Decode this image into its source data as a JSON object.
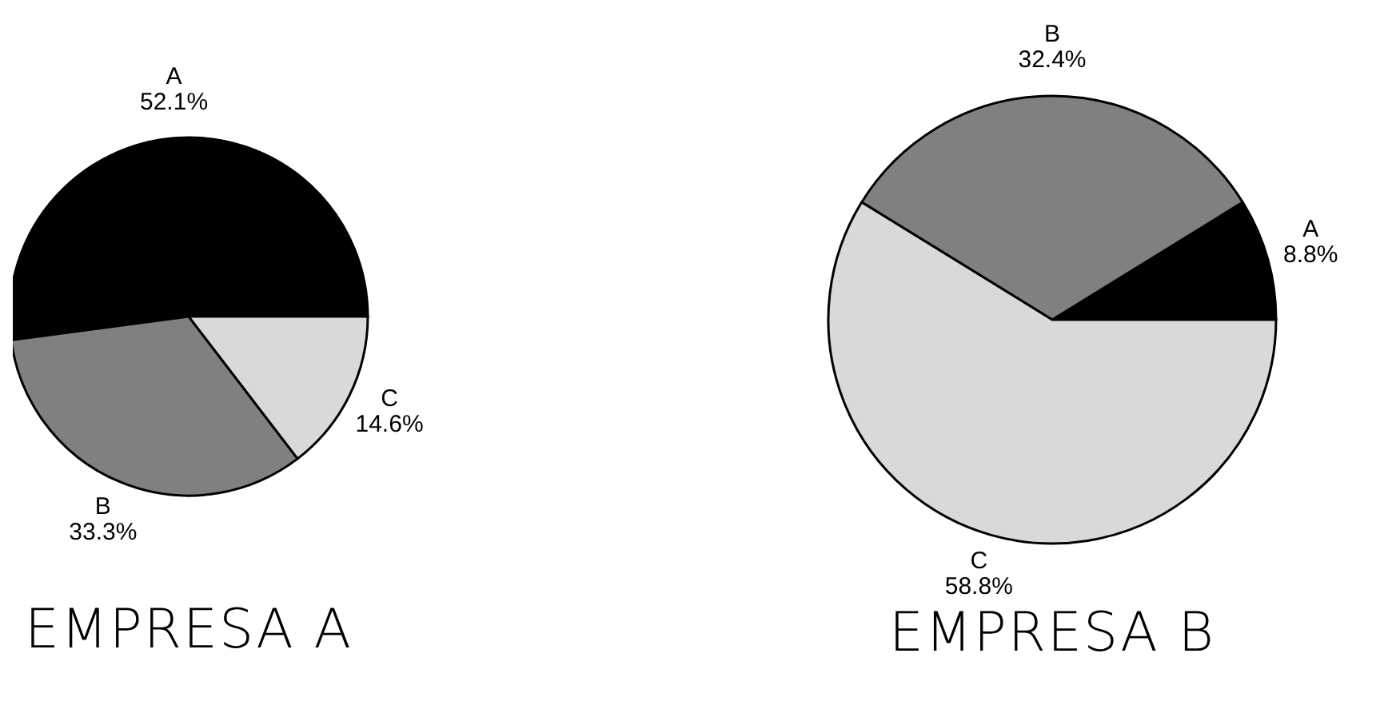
{
  "chart_data": [
    {
      "type": "pie",
      "title": "EMPRESA A",
      "categories": [
        "A",
        "B",
        "C"
      ],
      "values": [
        52.1,
        33.3,
        14.6
      ],
      "colors": [
        "#000000",
        "#808080",
        "#d9d9d9"
      ],
      "value_labels": [
        "52.1%",
        "33.3%",
        "14.6%"
      ]
    },
    {
      "type": "pie",
      "title": "EMPRESA B",
      "categories": [
        "A",
        "B",
        "C"
      ],
      "values": [
        8.8,
        32.4,
        58.8
      ],
      "colors": [
        "#000000",
        "#808080",
        "#d9d9d9"
      ],
      "value_labels": [
        "8.8%",
        "32.4%",
        "58.8%"
      ]
    }
  ]
}
